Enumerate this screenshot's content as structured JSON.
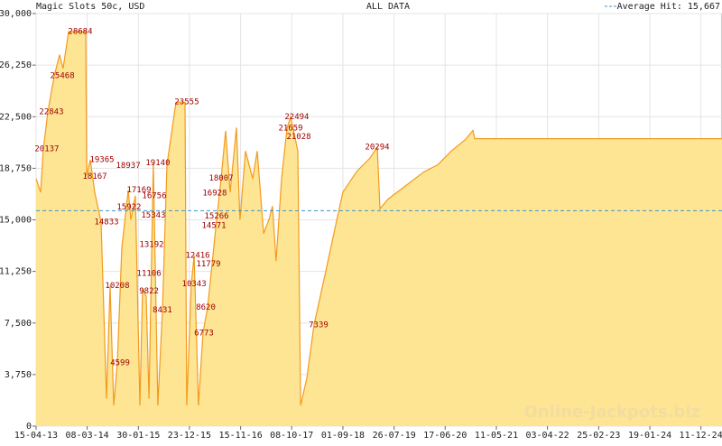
{
  "chart_data": {
    "type": "area",
    "title": "Magic Slots 50c, USD",
    "subtitle": "ALL DATA",
    "average": {
      "value": 15667,
      "label": "Average Hit: 15,667"
    },
    "watermark": "Online-Jackpots.biz",
    "fill_color": "#fde594",
    "line_color": "#f39a1e",
    "average_color": "#3c96c8",
    "x": [
      "15-04-13",
      "14-05-13",
      "31-05-13",
      "29-06-13",
      "09-08-13",
      "12-09-13",
      "05-10-13",
      "09-11-13",
      "27-02-14",
      "05-03-14",
      "28-03-14",
      "26-04-14",
      "05-06-14",
      "10-07-14",
      "02-08-14",
      "25-08-14",
      "17-09-14",
      "16-10-14",
      "26-11-14",
      "13-12-14",
      "11-01-15",
      "09-02-15",
      "26-02-15",
      "21-03-15",
      "08-04-15",
      "06-05-15",
      "04-06-15",
      "03-07-15",
      "01-08-15",
      "28-09-15",
      "25-11-15",
      "06-12-15",
      "04-01-16",
      "22-01-16",
      "19-02-16",
      "19-03-16",
      "17-04-16",
      "16-05-16",
      "14-06-16",
      "13-07-16",
      "11-08-16",
      "09-09-16",
      "19-10-16",
      "11-11-16",
      "16-12-16",
      "31-01-17",
      "01-03-17",
      "11-04-17",
      "15-05-17",
      "07-06-17",
      "30-06-17",
      "04-08-17",
      "08-09-17",
      "01-10-17",
      "16-11-17",
      "04-12-17",
      "13-01-18",
      "28-02-18",
      "09-05-18",
      "05-07-18",
      "01-09-18",
      "27-11-18",
      "22-02-19",
      "09-04-19",
      "26-04-19",
      "17-06-19",
      "11-10-19",
      "03-02-20",
      "30-04-20",
      "26-07-20",
      "21-10-20",
      "12-12-20",
      "23-12-20",
      "25-04-25"
    ],
    "values": [
      18000,
      17000,
      20137,
      22843,
      25468,
      27000,
      26000,
      28684,
      28684,
      18167,
      19365,
      17000,
      14833,
      2000,
      10208,
      1500,
      4599,
      13000,
      17169,
      15000,
      16756,
      1500,
      10000,
      9422,
      2000,
      19140,
      1500,
      8431,
      19000,
      23555,
      23555,
      1500,
      10343,
      12416,
      1500,
      6773,
      8620,
      11779,
      15000,
      18007,
      21472,
      17000,
      21712,
      15000,
      20000,
      18000,
      20000,
      14000,
      15000,
      16000,
      12000,
      18000,
      21659,
      22494,
      20000,
      1500,
      3500,
      7339,
      11000,
      14000,
      17000,
      18500,
      19500,
      20294,
      15800,
      16500,
      17500,
      18500,
      19000,
      20000,
      20800,
      21500,
      20900,
      20900
    ],
    "annotations": [
      {
        "x": "23-06-13",
        "value": 20137
      },
      {
        "x": "22-07-13",
        "value": 22843
      },
      {
        "x": "30-09-13",
        "value": 25468
      },
      {
        "x": "23-01-14",
        "value": 28684
      },
      {
        "x": "11-06-14",
        "value": 19365
      },
      {
        "x": "26-04-14",
        "value": 18167
      },
      {
        "x": "10-07-14",
        "value": 14833
      },
      {
        "x": "17-09-14",
        "value": 10208
      },
      {
        "x": "05-10-14",
        "value": 4599
      },
      {
        "x": "26-11-14",
        "value": 18937
      },
      {
        "x": "03-02-15",
        "value": 17169
      },
      {
        "x": "01-12-14",
        "value": 15922
      },
      {
        "x": "12-05-15",
        "value": 16756
      },
      {
        "x": "06-05-15",
        "value": 15343
      },
      {
        "x": "25-04-15",
        "value": 13192
      },
      {
        "x": "08-04-15",
        "value": 11106
      },
      {
        "x": "08-04-15",
        "value": 9822
      },
      {
        "x": "04-06-15",
        "value": 19140
      },
      {
        "x": "03-07-15",
        "value": 8431
      },
      {
        "x": "06-12-15",
        "value": 23555
      },
      {
        "x": "22-01-16",
        "value": 10343
      },
      {
        "x": "14-02-16",
        "value": 12416
      },
      {
        "x": "06-04-16",
        "value": 8620
      },
      {
        "x": "25-03-16",
        "value": 6773
      },
      {
        "x": "23-04-16",
        "value": 11779
      },
      {
        "x": "28-05-16",
        "value": 14571
      },
      {
        "x": "02-06-16",
        "value": 16928
      },
      {
        "x": "13-07-16",
        "value": 18007
      },
      {
        "x": "14-06-16",
        "value": 15266
      },
      {
        "x": "09-04-19",
        "value": 20294
      },
      {
        "x": "10-11-17",
        "value": 22494
      },
      {
        "x": "01-10-17",
        "value": 21659
      },
      {
        "x": "22-11-17",
        "value": 21028
      },
      {
        "x": "29-03-18",
        "value": 7339
      }
    ],
    "xlim": [
      "15-04-13",
      "25-04-25"
    ],
    "xticks": [
      "15-04-13",
      "08-03-14",
      "30-01-15",
      "23-12-15",
      "15-11-16",
      "08-10-17",
      "01-09-18",
      "26-07-19",
      "17-06-20",
      "11-05-21",
      "03-04-22",
      "25-02-23",
      "19-01-24",
      "11-12-24"
    ],
    "ylim": [
      0,
      30000
    ],
    "yticks": [
      0,
      {
        "value": 3750,
        "label": "3,750"
      },
      {
        "value": 7500,
        "label": "7,500"
      },
      {
        "value": 11250,
        "label": "11,250"
      },
      {
        "value": 15000,
        "label": "15,000"
      },
      {
        "value": 18750,
        "label": "18,750"
      },
      {
        "value": 22500,
        "label": "22,500"
      },
      {
        "value": 26250,
        "label": "26,250"
      },
      {
        "value": 30000,
        "label": "30,000"
      }
    ],
    "grid": true
  }
}
